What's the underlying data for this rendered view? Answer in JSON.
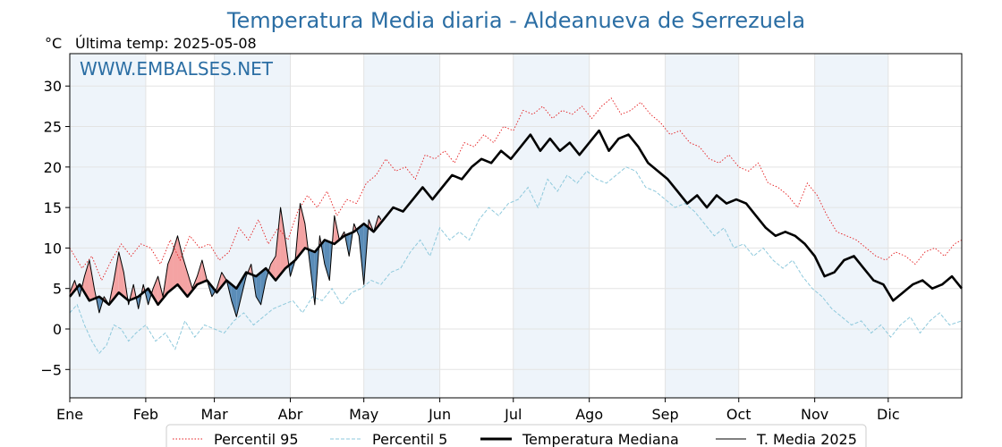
{
  "header": {
    "title": "Temperatura Media diaria - Aldeanueva de Serrezuela",
    "unit": "°C",
    "last_temp": "Última temp: 2025-05-08",
    "watermark": "WWW.EMBALSES.NET"
  },
  "colors": {
    "title": "#2b6ea4",
    "p95": "#e41a1c",
    "p5": "#8ec9dc",
    "median": "#000000",
    "current": "#000000",
    "above_fill": "#f4a3a3",
    "below_fill": "#5b8db8",
    "band_fill": "#eef4fa"
  },
  "legend": {
    "p95": "Percentil 95",
    "p5": "Percentil 5",
    "median": "Temperatura Mediana",
    "current": "T. Media 2025"
  },
  "chart_data": {
    "type": "line",
    "title": "Temperatura Media diaria - Aldeanueva de Serrezuela",
    "ylabel": "°C",
    "xlim": [
      1,
      365
    ],
    "ylim": [
      -8.5,
      34
    ],
    "yticks": [
      -5,
      0,
      5,
      10,
      15,
      20,
      25,
      30
    ],
    "x_ticks": [
      {
        "label": "Ene",
        "day": 1
      },
      {
        "label": "Feb",
        "day": 32
      },
      {
        "label": "Mar",
        "day": 60
      },
      {
        "label": "Abr",
        "day": 91
      },
      {
        "label": "May",
        "day": 121
      },
      {
        "label": "Jun",
        "day": 152
      },
      {
        "label": "Jul",
        "day": 182
      },
      {
        "label": "Ago",
        "day": 213
      },
      {
        "label": "Sep",
        "day": 244
      },
      {
        "label": "Oct",
        "day": 274
      },
      {
        "label": "Nov",
        "day": 305
      },
      {
        "label": "Dic",
        "day": 335
      }
    ],
    "grid": true,
    "legend_position": "bottom",
    "series": [
      {
        "name": "Percentil 95",
        "style": "dotted",
        "x": [
          1,
          6,
          10,
          14,
          18,
          22,
          26,
          30,
          34,
          38,
          42,
          46,
          50,
          54,
          58,
          62,
          66,
          70,
          74,
          78,
          82,
          86,
          90,
          94,
          98,
          102,
          106,
          110,
          114,
          118,
          122,
          126,
          130,
          134,
          138,
          142,
          146,
          150,
          154,
          158,
          162,
          166,
          170,
          174,
          178,
          182,
          186,
          190,
          194,
          198,
          202,
          206,
          210,
          214,
          218,
          222,
          226,
          230,
          234,
          238,
          242,
          246,
          250,
          254,
          258,
          262,
          266,
          270,
          274,
          278,
          282,
          286,
          290,
          294,
          298,
          302,
          306,
          310,
          314,
          318,
          322,
          326,
          330,
          334,
          338,
          342,
          346,
          350,
          354,
          358,
          362,
          365
        ],
        "y": [
          10.0,
          7.5,
          9.0,
          6.0,
          8.5,
          10.5,
          9.0,
          10.5,
          10.0,
          8.0,
          11.0,
          8.5,
          11.5,
          10.0,
          10.5,
          8.5,
          9.5,
          12.5,
          11.0,
          13.5,
          10.5,
          12.5,
          11.0,
          14.5,
          16.5,
          15.0,
          17.0,
          14.0,
          16.0,
          15.5,
          18.0,
          19.0,
          21.0,
          19.5,
          20.0,
          18.5,
          21.5,
          21.0,
          22.0,
          20.5,
          23.0,
          22.5,
          24.0,
          23.0,
          25.0,
          24.5,
          27.0,
          26.5,
          27.5,
          26.0,
          27.0,
          26.5,
          27.5,
          26.0,
          27.5,
          28.5,
          26.5,
          27.0,
          28.0,
          26.5,
          25.5,
          24.0,
          24.5,
          23.0,
          22.5,
          21.0,
          20.5,
          21.5,
          20.0,
          19.5,
          20.5,
          18.0,
          17.5,
          16.5,
          15.0,
          18.0,
          16.5,
          14.0,
          12.0,
          11.5,
          11.0,
          10.0,
          9.0,
          8.5,
          9.5,
          9.0,
          8.0,
          9.5,
          10.0,
          9.0,
          10.5,
          11.0
        ]
      },
      {
        "name": "Percentil 5",
        "style": "dashed",
        "x": [
          1,
          4,
          7,
          10,
          13,
          16,
          19,
          22,
          25,
          28,
          32,
          36,
          40,
          44,
          48,
          52,
          56,
          60,
          64,
          68,
          72,
          76,
          80,
          84,
          88,
          92,
          96,
          100,
          104,
          108,
          112,
          116,
          120,
          124,
          128,
          132,
          136,
          140,
          144,
          148,
          152,
          156,
          160,
          164,
          168,
          172,
          176,
          180,
          184,
          188,
          192,
          196,
          200,
          204,
          208,
          212,
          216,
          220,
          224,
          228,
          232,
          236,
          240,
          244,
          248,
          252,
          256,
          260,
          264,
          268,
          272,
          276,
          280,
          284,
          288,
          292,
          296,
          300,
          304,
          308,
          312,
          316,
          320,
          324,
          328,
          332,
          336,
          340,
          344,
          348,
          352,
          356,
          360,
          365
        ],
        "y": [
          2.0,
          3.0,
          0.5,
          -1.5,
          -3.0,
          -2.0,
          0.5,
          0.0,
          -1.5,
          -0.5,
          0.5,
          -1.5,
          -0.5,
          -2.5,
          1.0,
          -1.0,
          0.5,
          0.0,
          -0.5,
          1.0,
          2.0,
          0.5,
          1.5,
          2.5,
          3.0,
          3.5,
          2.0,
          4.0,
          3.5,
          5.0,
          3.0,
          4.5,
          5.0,
          6.0,
          5.5,
          7.0,
          7.5,
          9.5,
          11.0,
          9.0,
          12.5,
          11.0,
          12.0,
          11.0,
          13.5,
          15.0,
          14.0,
          15.5,
          16.0,
          17.5,
          15.0,
          18.5,
          17.0,
          19.0,
          18.0,
          19.5,
          18.5,
          18.0,
          19.0,
          20.0,
          19.5,
          17.5,
          17.0,
          16.0,
          15.0,
          15.5,
          14.5,
          13.0,
          11.5,
          12.5,
          10.0,
          10.5,
          9.0,
          10.0,
          8.5,
          7.5,
          8.5,
          6.5,
          5.0,
          4.0,
          2.5,
          1.5,
          0.5,
          1.0,
          -0.5,
          0.5,
          -1.0,
          0.5,
          1.5,
          -0.5,
          1.0,
          2.0,
          0.5,
          1.0
        ]
      },
      {
        "name": "Temperatura Mediana",
        "style": "solid-thick",
        "x": [
          1,
          5,
          9,
          13,
          17,
          21,
          25,
          29,
          33,
          37,
          41,
          45,
          49,
          53,
          57,
          61,
          65,
          69,
          73,
          77,
          81,
          85,
          89,
          93,
          97,
          101,
          105,
          109,
          113,
          117,
          121,
          125,
          129,
          133,
          137,
          141,
          145,
          149,
          153,
          157,
          161,
          165,
          169,
          173,
          177,
          181,
          185,
          189,
          193,
          197,
          201,
          205,
          209,
          213,
          217,
          221,
          225,
          229,
          233,
          237,
          241,
          245,
          249,
          253,
          257,
          261,
          265,
          269,
          273,
          277,
          281,
          285,
          289,
          293,
          297,
          301,
          305,
          309,
          313,
          317,
          321,
          325,
          329,
          333,
          337,
          341,
          345,
          349,
          353,
          357,
          361,
          365
        ],
        "y": [
          4.0,
          5.5,
          3.5,
          4.0,
          3.0,
          4.5,
          3.5,
          4.0,
          5.0,
          3.0,
          4.5,
          5.5,
          4.0,
          5.5,
          6.0,
          4.5,
          6.0,
          5.0,
          7.0,
          6.5,
          7.5,
          6.0,
          7.5,
          8.5,
          10.0,
          9.5,
          11.0,
          10.5,
          11.5,
          12.0,
          13.0,
          12.0,
          13.5,
          15.0,
          14.5,
          16.0,
          17.5,
          16.0,
          17.5,
          19.0,
          18.5,
          20.0,
          21.0,
          20.5,
          22.0,
          21.0,
          22.5,
          24.0,
          22.0,
          23.5,
          22.0,
          23.0,
          21.5,
          23.0,
          24.5,
          22.0,
          23.5,
          24.0,
          22.5,
          20.5,
          19.5,
          18.5,
          17.0,
          15.5,
          16.5,
          15.0,
          16.5,
          15.5,
          16.0,
          15.5,
          14.0,
          12.5,
          11.5,
          12.0,
          11.5,
          10.5,
          9.0,
          6.5,
          7.0,
          8.5,
          9.0,
          7.5,
          6.0,
          5.5,
          3.5,
          4.5,
          5.5,
          6.0,
          5.0,
          5.5,
          6.5,
          5.0
        ]
      },
      {
        "name": "T. Media 2025",
        "style": "solid-thin",
        "x": [
          1,
          3,
          5,
          7,
          9,
          11,
          13,
          15,
          17,
          19,
          21,
          23,
          25,
          27,
          29,
          31,
          33,
          35,
          37,
          39,
          41,
          43,
          45,
          47,
          49,
          51,
          53,
          55,
          57,
          59,
          61,
          63,
          65,
          67,
          69,
          71,
          73,
          75,
          77,
          79,
          81,
          83,
          85,
          87,
          89,
          91,
          93,
          95,
          97,
          99,
          101,
          103,
          105,
          107,
          109,
          111,
          113,
          115,
          117,
          119,
          121,
          123,
          125,
          127,
          128
        ],
        "y": [
          4.5,
          6.0,
          4.0,
          6.5,
          8.5,
          5.0,
          2.0,
          4.0,
          3.0,
          6.0,
          9.5,
          7.0,
          3.0,
          5.5,
          2.5,
          5.5,
          3.0,
          5.0,
          6.5,
          4.0,
          8.0,
          9.5,
          11.5,
          9.0,
          7.0,
          5.0,
          6.5,
          8.5,
          6.0,
          4.0,
          5.0,
          7.0,
          6.0,
          3.5,
          1.5,
          4.0,
          6.5,
          8.0,
          4.0,
          3.0,
          6.0,
          8.0,
          9.0,
          15.0,
          11.0,
          6.5,
          8.5,
          15.5,
          13.0,
          8.0,
          3.0,
          11.5,
          8.0,
          6.0,
          14.0,
          11.0,
          12.0,
          9.0,
          13.0,
          11.5,
          5.5,
          13.5,
          12.0,
          14.0,
          13.5
        ]
      }
    ]
  }
}
